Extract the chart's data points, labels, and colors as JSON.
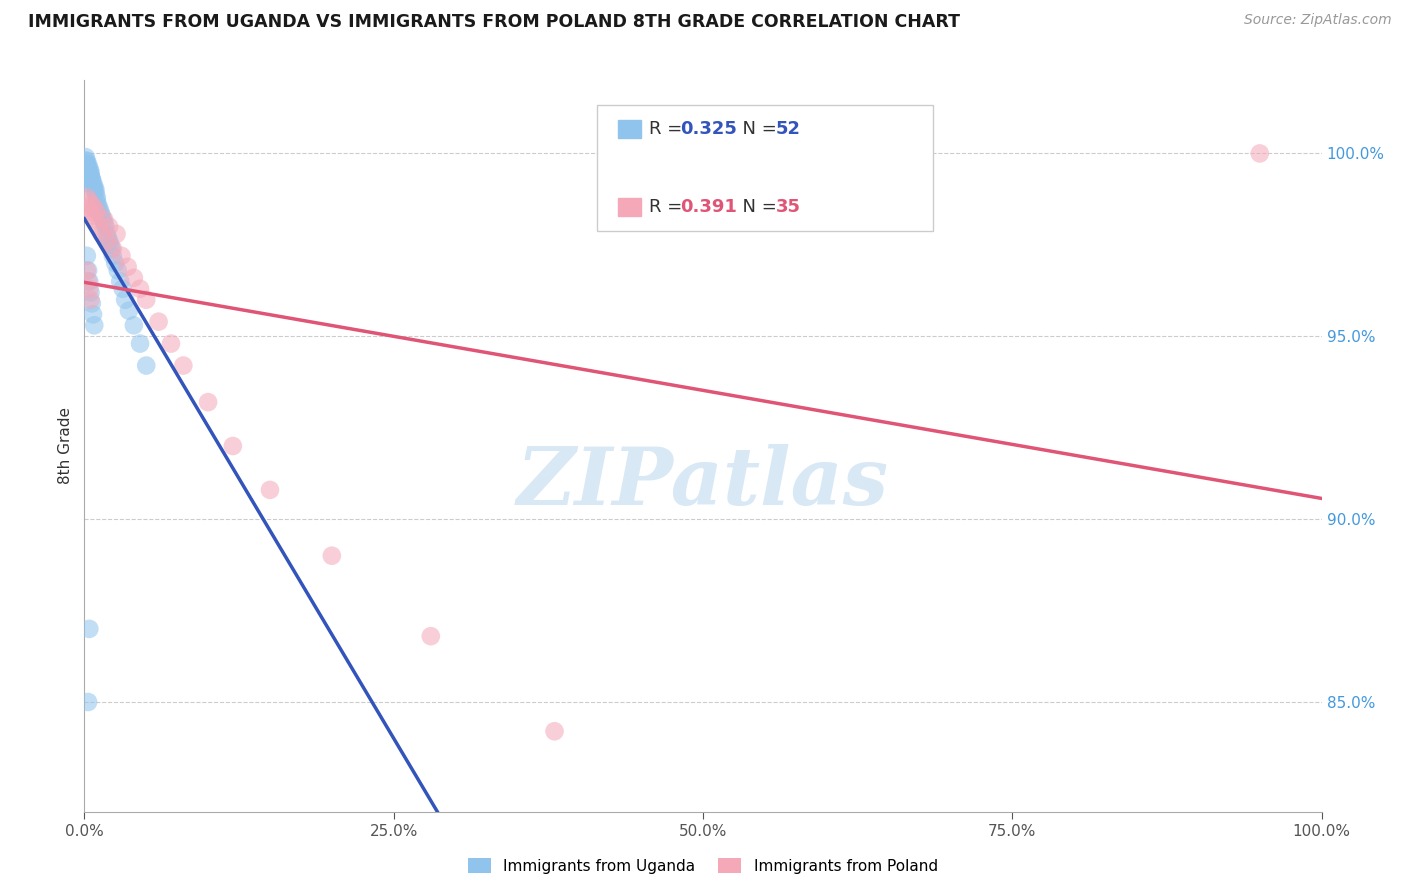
{
  "title": "IMMIGRANTS FROM UGANDA VS IMMIGRANTS FROM POLAND 8TH GRADE CORRELATION CHART",
  "source": "Source: ZipAtlas.com",
  "ylabel": "8th Grade",
  "y_ticks": [
    "85.0%",
    "90.0%",
    "95.0%",
    "100.0%"
  ],
  "y_tick_vals": [
    0.85,
    0.9,
    0.95,
    1.0
  ],
  "xlim": [
    0.0,
    1.0
  ],
  "ylim": [
    0.82,
    1.02
  ],
  "uganda_R": "0.325",
  "uganda_N": "52",
  "poland_R": "0.391",
  "poland_N": "35",
  "uganda_color": "#90C4ED",
  "poland_color": "#F4A8B8",
  "uganda_line_color": "#3355BB",
  "poland_line_color": "#E05575",
  "legend_label_uganda": "Immigrants from Uganda",
  "legend_label_poland": "Immigrants from Poland",
  "uganda_x": [
    0.001,
    0.001,
    0.002,
    0.002,
    0.003,
    0.003,
    0.004,
    0.004,
    0.005,
    0.005,
    0.005,
    0.006,
    0.006,
    0.007,
    0.007,
    0.008,
    0.008,
    0.009,
    0.009,
    0.01,
    0.01,
    0.011,
    0.012,
    0.013,
    0.014,
    0.015,
    0.016,
    0.017,
    0.018,
    0.019,
    0.02,
    0.021,
    0.022,
    0.023,
    0.025,
    0.027,
    0.029,
    0.031,
    0.033,
    0.036,
    0.04,
    0.045,
    0.05,
    0.002,
    0.003,
    0.004,
    0.005,
    0.006,
    0.007,
    0.008,
    0.004,
    0.003
  ],
  "uganda_y": [
    0.999,
    0.998,
    0.998,
    0.997,
    0.997,
    0.996,
    0.996,
    0.995,
    0.995,
    0.994,
    0.994,
    0.993,
    0.993,
    0.992,
    0.991,
    0.991,
    0.99,
    0.99,
    0.989,
    0.988,
    0.987,
    0.986,
    0.985,
    0.984,
    0.983,
    0.982,
    0.981,
    0.98,
    0.978,
    0.977,
    0.976,
    0.975,
    0.974,
    0.972,
    0.97,
    0.968,
    0.965,
    0.963,
    0.96,
    0.957,
    0.953,
    0.948,
    0.942,
    0.972,
    0.968,
    0.965,
    0.962,
    0.959,
    0.956,
    0.953,
    0.87,
    0.85
  ],
  "poland_x": [
    0.002,
    0.003,
    0.004,
    0.005,
    0.006,
    0.007,
    0.008,
    0.009,
    0.01,
    0.012,
    0.014,
    0.016,
    0.018,
    0.02,
    0.023,
    0.026,
    0.03,
    0.035,
    0.04,
    0.045,
    0.05,
    0.06,
    0.07,
    0.08,
    0.1,
    0.12,
    0.15,
    0.2,
    0.28,
    0.38,
    0.002,
    0.003,
    0.004,
    0.005,
    0.95
  ],
  "poland_y": [
    0.988,
    0.985,
    0.987,
    0.984,
    0.986,
    0.983,
    0.985,
    0.982,
    0.984,
    0.98,
    0.978,
    0.982,
    0.976,
    0.98,
    0.974,
    0.978,
    0.972,
    0.969,
    0.966,
    0.963,
    0.96,
    0.954,
    0.948,
    0.942,
    0.932,
    0.92,
    0.908,
    0.89,
    0.868,
    0.842,
    0.968,
    0.965,
    0.963,
    0.96,
    1.0
  ],
  "watermark": "ZIPatlas",
  "watermark_color": "#D8E8F5"
}
